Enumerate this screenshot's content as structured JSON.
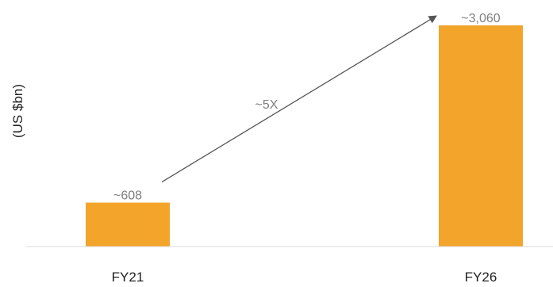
{
  "chart_data": {
    "type": "bar",
    "categories": [
      "FY21",
      "FY26"
    ],
    "values": [
      608,
      3060
    ],
    "data_labels": [
      "~608",
      "~3,060"
    ],
    "ylabel": "(US $bn)",
    "ylim": [
      0,
      3200
    ],
    "grid": false,
    "legend": "none",
    "annotation": {
      "text": "~5X",
      "type": "arrow",
      "from_category": "FY21",
      "to_category": "FY26"
    },
    "colors": {
      "bar": "#F2A42B",
      "baseline": "#d9d9d9",
      "arrow": "#555555"
    }
  }
}
